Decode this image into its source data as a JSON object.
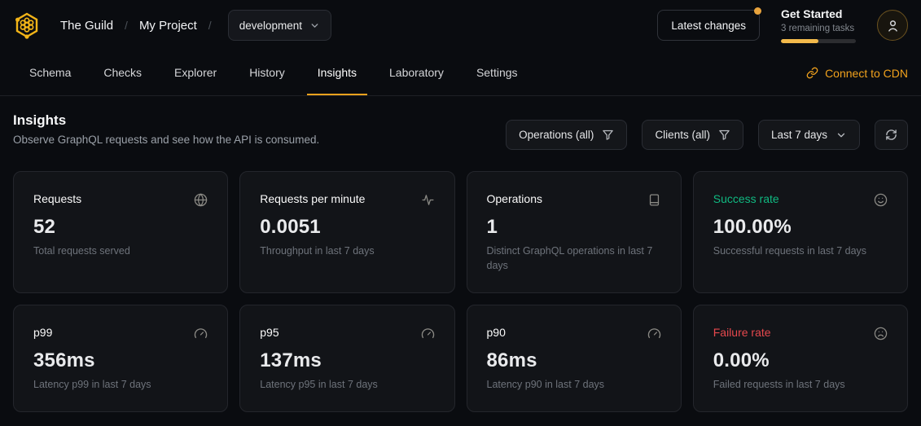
{
  "colors": {
    "accent": "#f1a21d",
    "progress_fill": "#f3ba4b",
    "notification_dot": "#e8a33d",
    "success": "#10b981",
    "failure": "#e5484d"
  },
  "header": {
    "org": "The Guild",
    "separator1": "/",
    "project": "My Project",
    "separator2": "/",
    "target_selector": {
      "value": "development",
      "icon": "chevron-down-icon"
    },
    "latest_changes_label": "Latest changes",
    "get_started": {
      "title": "Get Started",
      "subtitle": "3 remaining tasks",
      "progress_percent": 50
    },
    "avatar_icon": "person-icon"
  },
  "nav": {
    "tabs": [
      {
        "label": "Schema",
        "active": false
      },
      {
        "label": "Checks",
        "active": false
      },
      {
        "label": "Explorer",
        "active": false
      },
      {
        "label": "History",
        "active": false
      },
      {
        "label": "Insights",
        "active": true
      },
      {
        "label": "Laboratory",
        "active": false
      },
      {
        "label": "Settings",
        "active": false
      }
    ],
    "cdn_link_label": "Connect to CDN",
    "cdn_link_icon": "link-icon"
  },
  "insights": {
    "title": "Insights",
    "subtitle": "Observe GraphQL requests and see how the API is consumed.",
    "filters": {
      "operations_label": "Operations (all)",
      "operations_icon": "filter-icon",
      "clients_label": "Clients (all)",
      "clients_icon": "filter-icon",
      "period_label": "Last 7 days",
      "period_icon": "chevron-down-icon",
      "refresh_icon": "refresh-icon"
    }
  },
  "cards": [
    {
      "title": "Requests",
      "value": "52",
      "description": "Total requests served",
      "icon": "globe-icon",
      "title_color": ""
    },
    {
      "title": "Requests per minute",
      "value": "0.0051",
      "description": "Throughput in last 7 days",
      "icon": "activity-icon",
      "title_color": ""
    },
    {
      "title": "Operations",
      "value": "1",
      "description": "Distinct GraphQL operations in last 7 days",
      "icon": "book-icon",
      "title_color": ""
    },
    {
      "title": "Success rate",
      "value": "100.00%",
      "description": "Successful requests in last 7 days",
      "icon": "smile-icon",
      "title_color": "#10b981"
    },
    {
      "title": "p99",
      "value": "356ms",
      "description": "Latency p99 in last 7 days",
      "icon": "gauge-icon",
      "title_color": ""
    },
    {
      "title": "p95",
      "value": "137ms",
      "description": "Latency p95 in last 7 days",
      "icon": "gauge-icon",
      "title_color": ""
    },
    {
      "title": "p90",
      "value": "86ms",
      "description": "Latency p90 in last 7 days",
      "icon": "gauge-icon",
      "title_color": ""
    },
    {
      "title": "Failure rate",
      "value": "0.00%",
      "description": "Failed requests in last 7 days",
      "icon": "frown-icon",
      "title_color": "#e5484d"
    }
  ]
}
